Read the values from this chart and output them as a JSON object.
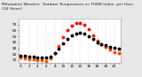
{
  "title": "Milwaukee Weather  Outdoor Temperature vs THSW Index  per Hour  (24 Hours)",
  "bg_color": "#e8e8e8",
  "plot_bg": "#ffffff",
  "hours": [
    0,
    1,
    2,
    3,
    4,
    5,
    6,
    7,
    8,
    9,
    10,
    11,
    12,
    13,
    14,
    15,
    16,
    17,
    18,
    19,
    20,
    21,
    22,
    23
  ],
  "temp": [
    18,
    17,
    16,
    16,
    15,
    15,
    14,
    16,
    22,
    30,
    38,
    46,
    52,
    55,
    56,
    54,
    50,
    45,
    40,
    37,
    35,
    33,
    31,
    30
  ],
  "thsw": [
    14,
    13,
    12,
    11,
    10,
    10,
    9,
    13,
    22,
    34,
    48,
    60,
    68,
    72,
    73,
    70,
    62,
    52,
    42,
    36,
    32,
    28,
    24,
    22
  ],
  "temp_color": "#000000",
  "thsw_colors_low": "#ff8800",
  "thsw_colors_high": "#ff0000",
  "ylim": [
    5,
    80
  ],
  "xlim": [
    -0.5,
    23.5
  ],
  "grid_color": "#bbbbbb",
  "tick_fontsize": 3.0,
  "title_fontsize": 3.2,
  "ytick_vals": [
    10,
    20,
    30,
    40,
    50,
    60,
    70
  ],
  "legend_orange": "#ff8800",
  "legend_red": "#ff0000",
  "marker_size": 1.8
}
